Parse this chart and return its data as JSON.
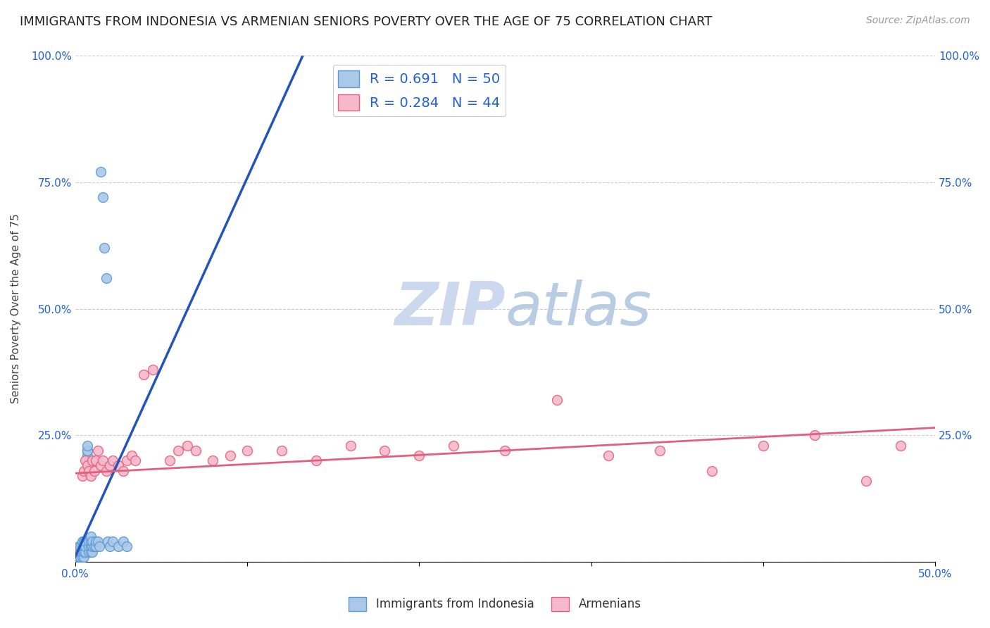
{
  "title": "IMMIGRANTS FROM INDONESIA VS ARMENIAN SENIORS POVERTY OVER THE AGE OF 75 CORRELATION CHART",
  "source": "Source: ZipAtlas.com",
  "ylabel": "Seniors Poverty Over the Age of 75",
  "xlim": [
    0,
    0.5
  ],
  "ylim": [
    0,
    1.0
  ],
  "blue_R": 0.691,
  "blue_N": 50,
  "pink_R": 0.284,
  "pink_N": 44,
  "blue_color": "#aac8e8",
  "blue_edge_color": "#5b9bd5",
  "pink_color": "#f5b8cc",
  "pink_edge_color": "#e8607a",
  "blue_line_color": "#2255bb",
  "pink_line_color": "#e06080",
  "legend_text_color": "#2060d0",
  "watermark_color": "#ccd8ee",
  "background_color": "#ffffff",
  "grid_color": "#cccccc",
  "title_fontsize": 13,
  "axis_label_fontsize": 11,
  "tick_fontsize": 11,
  "legend_fontsize": 14,
  "blue_x": [
    0.001,
    0.001,
    0.002,
    0.002,
    0.002,
    0.003,
    0.003,
    0.003,
    0.003,
    0.004,
    0.004,
    0.004,
    0.004,
    0.005,
    0.005,
    0.005,
    0.005,
    0.006,
    0.006,
    0.006,
    0.007,
    0.007,
    0.007,
    0.007,
    0.007,
    0.008,
    0.008,
    0.008,
    0.009,
    0.009,
    0.009,
    0.009,
    0.01,
    0.01,
    0.01,
    0.011,
    0.012,
    0.012,
    0.013,
    0.014,
    0.015,
    0.016,
    0.017,
    0.018,
    0.019,
    0.02,
    0.022,
    0.025,
    0.028,
    0.03
  ],
  "blue_y": [
    0.01,
    0.02,
    0.01,
    0.02,
    0.03,
    0.01,
    0.02,
    0.02,
    0.03,
    0.01,
    0.02,
    0.03,
    0.04,
    0.01,
    0.02,
    0.03,
    0.04,
    0.02,
    0.03,
    0.04,
    0.2,
    0.21,
    0.22,
    0.22,
    0.23,
    0.02,
    0.03,
    0.04,
    0.02,
    0.03,
    0.04,
    0.05,
    0.02,
    0.03,
    0.04,
    0.03,
    0.03,
    0.04,
    0.04,
    0.03,
    0.77,
    0.72,
    0.62,
    0.56,
    0.04,
    0.03,
    0.04,
    0.03,
    0.04,
    0.03
  ],
  "pink_x": [
    0.004,
    0.005,
    0.006,
    0.007,
    0.008,
    0.009,
    0.01,
    0.011,
    0.012,
    0.013,
    0.015,
    0.016,
    0.018,
    0.02,
    0.022,
    0.025,
    0.028,
    0.03,
    0.033,
    0.035,
    0.04,
    0.045,
    0.055,
    0.06,
    0.065,
    0.07,
    0.08,
    0.09,
    0.1,
    0.12,
    0.14,
    0.16,
    0.18,
    0.2,
    0.22,
    0.25,
    0.28,
    0.31,
    0.34,
    0.37,
    0.4,
    0.43,
    0.46,
    0.48
  ],
  "pink_y": [
    0.17,
    0.18,
    0.2,
    0.19,
    0.18,
    0.17,
    0.2,
    0.18,
    0.2,
    0.22,
    0.19,
    0.2,
    0.18,
    0.19,
    0.2,
    0.19,
    0.18,
    0.2,
    0.21,
    0.2,
    0.37,
    0.38,
    0.2,
    0.22,
    0.23,
    0.22,
    0.2,
    0.21,
    0.22,
    0.22,
    0.2,
    0.23,
    0.22,
    0.21,
    0.23,
    0.22,
    0.32,
    0.21,
    0.22,
    0.18,
    0.23,
    0.25,
    0.16,
    0.23
  ],
  "blue_trend_x": [
    0.0,
    0.135
  ],
  "blue_trend_y": [
    0.01,
    1.02
  ],
  "pink_trend_x": [
    0.0,
    0.5
  ],
  "pink_trend_y": [
    0.175,
    0.265
  ]
}
